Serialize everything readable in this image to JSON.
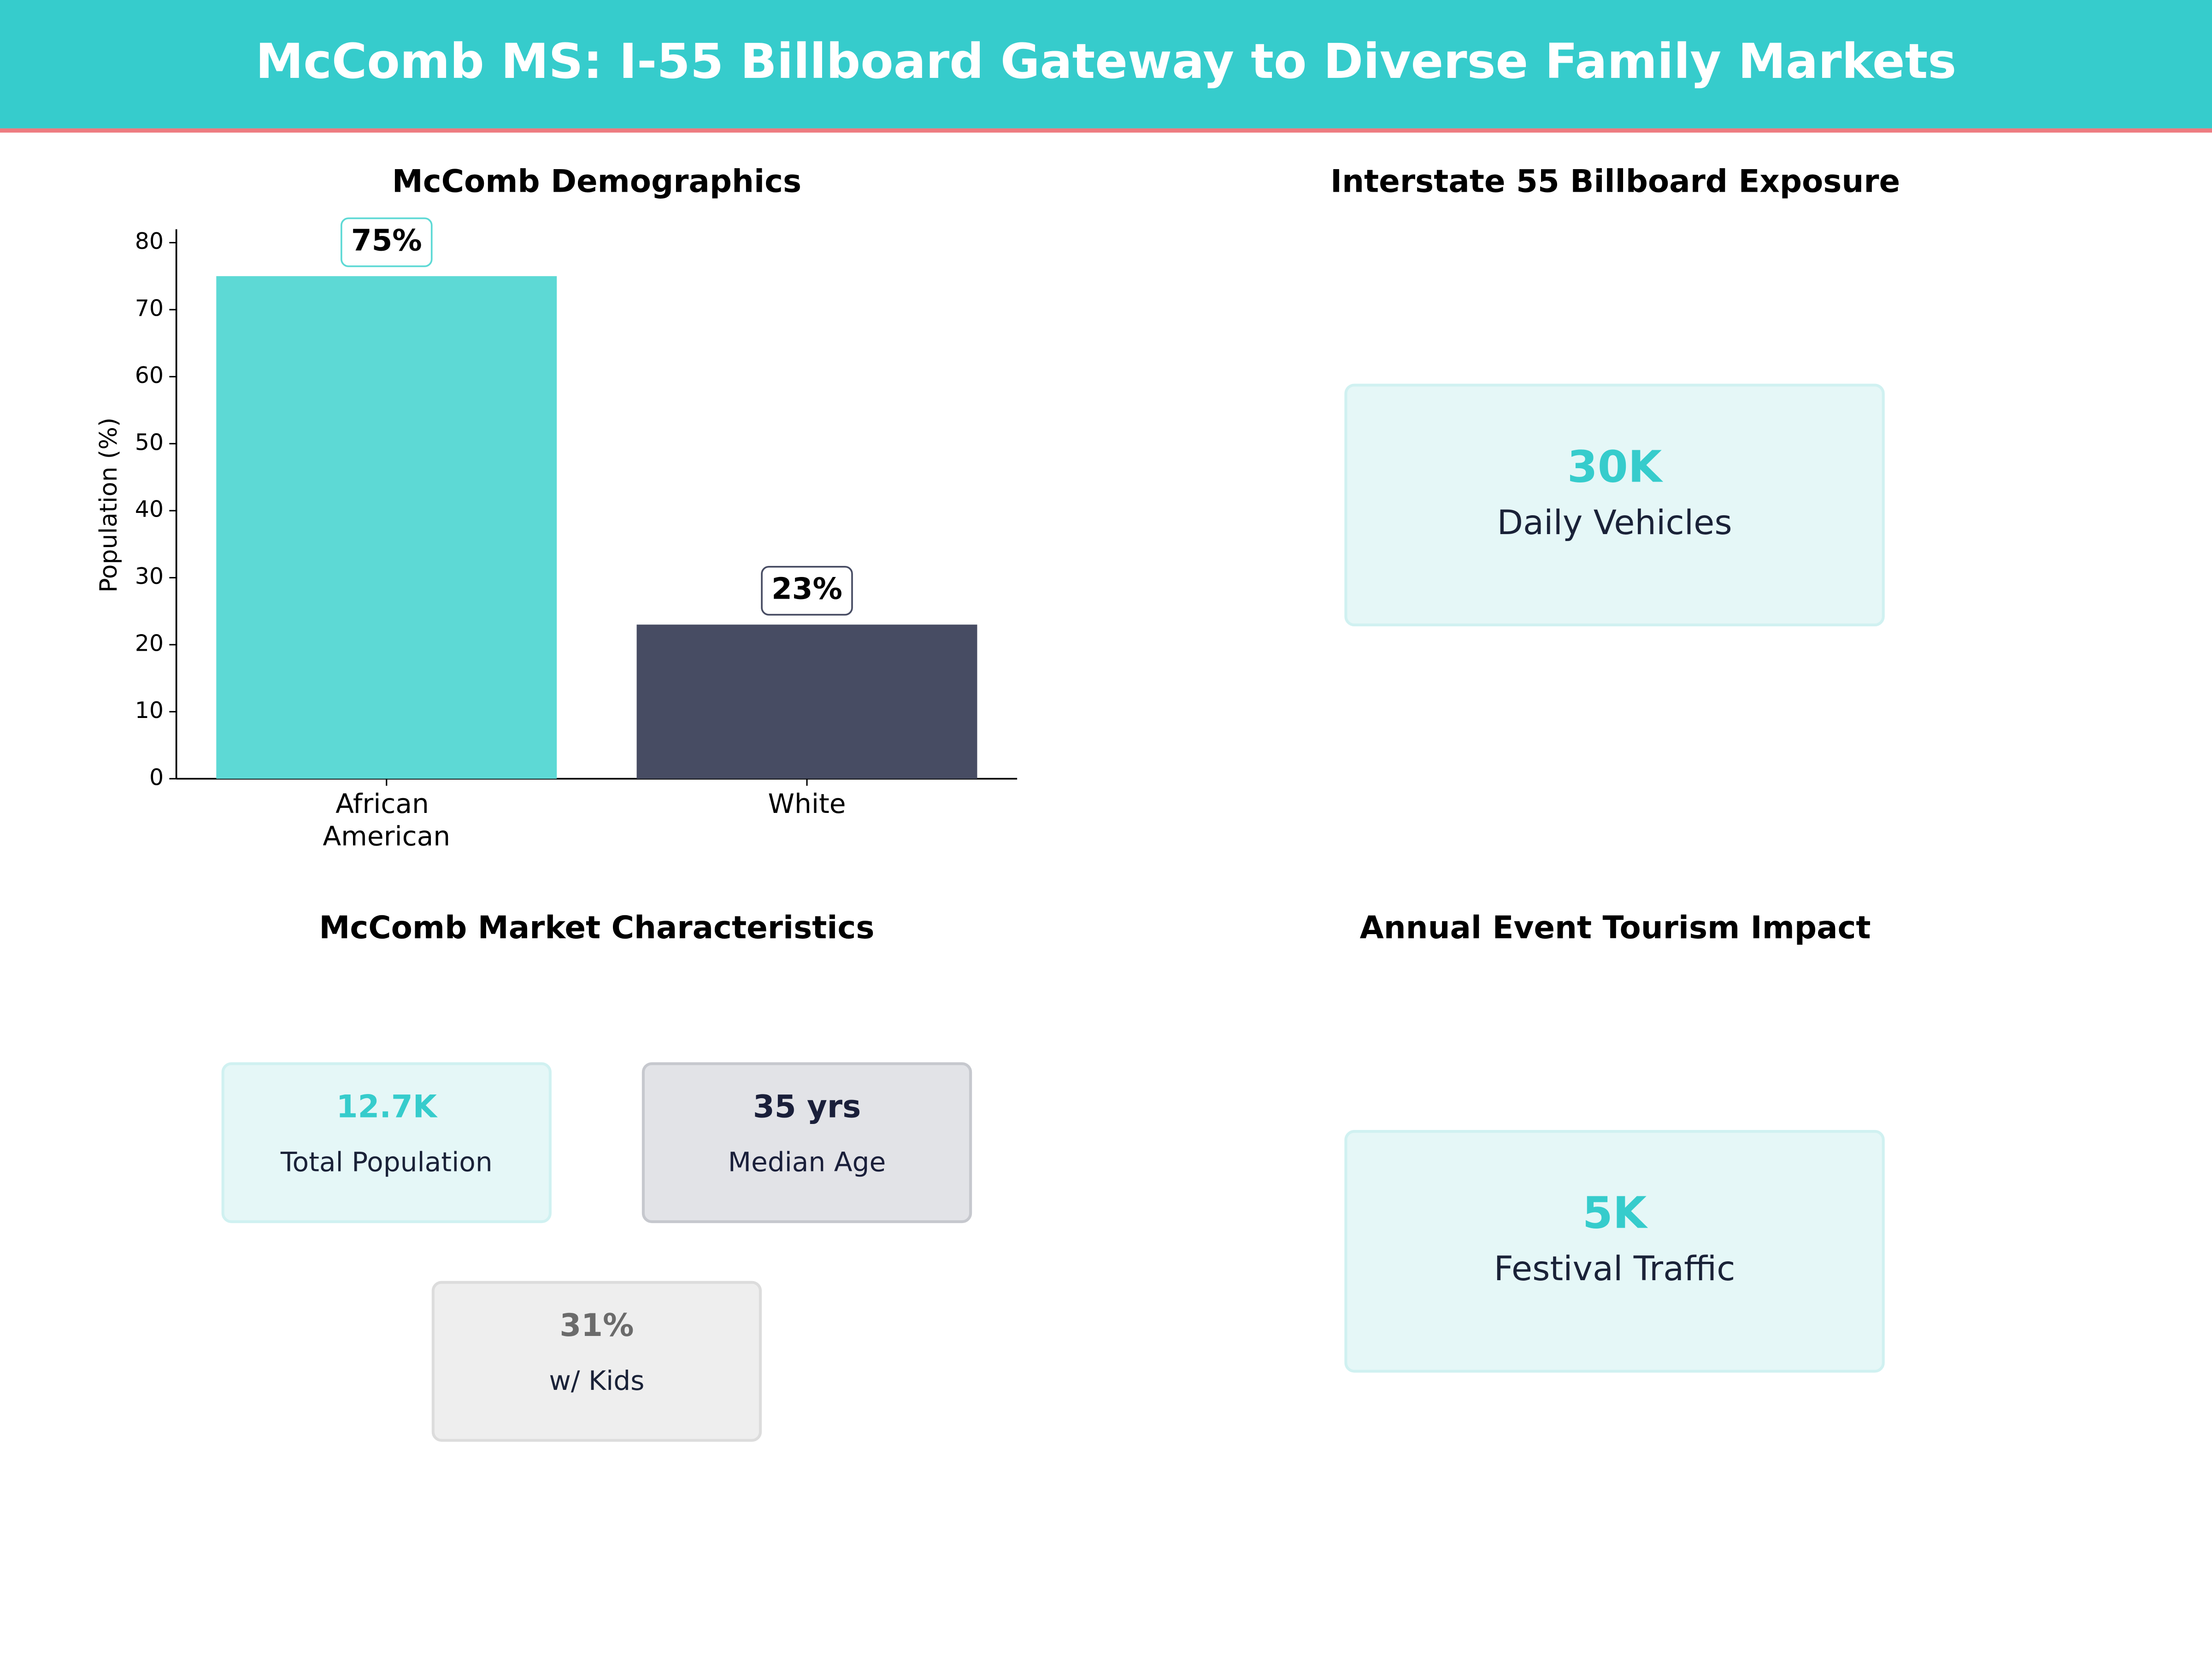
{
  "title": "McComb MS: I-55 Billboard Gateway to Diverse Family Markets",
  "chart_data": {
    "type": "bar",
    "title": "McComb Demographics",
    "categories": [
      "African American",
      "White"
    ],
    "values": [
      75,
      23
    ],
    "value_labels": [
      "75%",
      "23%"
    ],
    "colors": [
      "#5dd9d5",
      "#474c63"
    ],
    "ylabel": "Population (%)",
    "ylim": [
      0,
      82
    ],
    "yticks": [
      0,
      10,
      20,
      30,
      40,
      50,
      60,
      70,
      80
    ],
    "grid": false
  },
  "panels": [
    {
      "title": "Interstate 55 Billboard Exposure",
      "cards": [
        {
          "value": "30K",
          "label": "Daily Vehicles"
        }
      ]
    },
    {
      "title": "McComb Market Characteristics",
      "cards": [
        {
          "value": "12.7K",
          "label": "Total Population"
        },
        {
          "value": "35 yrs",
          "label": "Median Age"
        },
        {
          "value": "31%",
          "label": "w/ Kids"
        }
      ]
    },
    {
      "title": "Annual Event Tourism Impact",
      "cards": [
        {
          "value": "5K",
          "label": "Festival Traffic"
        }
      ]
    }
  ]
}
